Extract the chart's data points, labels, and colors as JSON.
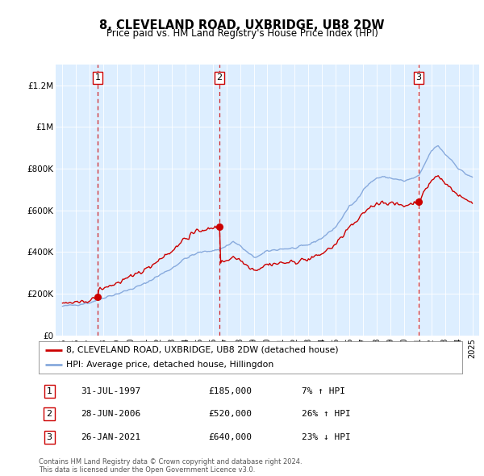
{
  "title": "8, CLEVELAND ROAD, UXBRIDGE, UB8 2DW",
  "subtitle": "Price paid vs. HM Land Registry's House Price Index (HPI)",
  "sale_dates": [
    1997.58,
    2006.49,
    2021.07
  ],
  "sale_prices": [
    185000,
    520000,
    640000
  ],
  "sale_labels": [
    "1",
    "2",
    "3"
  ],
  "sale_date_strs": [
    "31-JUL-1997",
    "28-JUN-2006",
    "26-JAN-2021"
  ],
  "sale_price_strs": [
    "£185,000",
    "£520,000",
    "£640,000"
  ],
  "sale_hpi_strs": [
    "7% ↑ HPI",
    "26% ↑ HPI",
    "23% ↓ HPI"
  ],
  "hpi_line_color": "#88aadd",
  "price_line_color": "#cc0000",
  "marker_color": "#cc0000",
  "dashed_line_color": "#cc0000",
  "plot_bg_color": "#ddeeff",
  "legend_line1": "8, CLEVELAND ROAD, UXBRIDGE, UB8 2DW (detached house)",
  "legend_line2": "HPI: Average price, detached house, Hillingdon",
  "footer": "Contains HM Land Registry data © Crown copyright and database right 2024.\nThis data is licensed under the Open Government Licence v3.0.",
  "ylim": [
    0,
    1300000
  ],
  "xlim_start": 1994.5,
  "xlim_end": 2025.5,
  "yticks": [
    0,
    200000,
    400000,
    600000,
    800000,
    1000000,
    1200000
  ],
  "ytick_labels": [
    "£0",
    "£200K",
    "£400K",
    "£600K",
    "£800K",
    "£1M",
    "£1.2M"
  ],
  "xticks": [
    1995,
    1996,
    1997,
    1998,
    1999,
    2000,
    2001,
    2002,
    2003,
    2004,
    2005,
    2006,
    2007,
    2008,
    2009,
    2010,
    2011,
    2012,
    2013,
    2014,
    2015,
    2016,
    2017,
    2018,
    2019,
    2020,
    2021,
    2022,
    2023,
    2024,
    2025
  ],
  "hpi_years": [
    1995.0,
    1995.08,
    1995.17,
    1995.25,
    1995.33,
    1995.42,
    1995.5,
    1995.58,
    1995.67,
    1995.75,
    1995.83,
    1995.92,
    1996.0,
    1996.08,
    1996.17,
    1996.25,
    1996.33,
    1996.42,
    1996.5,
    1996.58,
    1996.67,
    1996.75,
    1996.83,
    1996.92,
    1997.0,
    1997.08,
    1997.17,
    1997.25,
    1997.33,
    1997.42,
    1997.5,
    1997.58,
    1997.67,
    1997.75,
    1997.83,
    1997.92,
    1998.0,
    1998.08,
    1998.17,
    1998.25,
    1998.33,
    1998.42,
    1998.5,
    1998.58,
    1998.67,
    1998.75,
    1998.83,
    1998.92,
    1999.0,
    1999.08,
    1999.17,
    1999.25,
    1999.33,
    1999.42,
    1999.5,
    1999.58,
    1999.67,
    1999.75,
    1999.83,
    1999.92,
    2000.0,
    2000.08,
    2000.17,
    2000.25,
    2000.33,
    2000.42,
    2000.5,
    2000.58,
    2000.67,
    2000.75,
    2000.83,
    2000.92,
    2001.0,
    2001.08,
    2001.17,
    2001.25,
    2001.33,
    2001.42,
    2001.5,
    2001.58,
    2001.67,
    2001.75,
    2001.83,
    2001.92,
    2002.0,
    2002.08,
    2002.17,
    2002.25,
    2002.33,
    2002.42,
    2002.5,
    2002.58,
    2002.67,
    2002.75,
    2002.83,
    2002.92,
    2003.0,
    2003.08,
    2003.17,
    2003.25,
    2003.33,
    2003.42,
    2003.5,
    2003.58,
    2003.67,
    2003.75,
    2003.83,
    2003.92,
    2004.0,
    2004.08,
    2004.17,
    2004.25,
    2004.33,
    2004.42,
    2004.5,
    2004.58,
    2004.67,
    2004.75,
    2004.83,
    2004.92,
    2005.0,
    2005.08,
    2005.17,
    2005.25,
    2005.33,
    2005.42,
    2005.5,
    2005.58,
    2005.67,
    2005.75,
    2005.83,
    2005.92,
    2006.0,
    2006.08,
    2006.17,
    2006.25,
    2006.33,
    2006.42,
    2006.5,
    2006.58,
    2006.67,
    2006.75,
    2006.83,
    2006.92,
    2007.0,
    2007.08,
    2007.17,
    2007.25,
    2007.33,
    2007.42,
    2007.5,
    2007.58,
    2007.67,
    2007.75,
    2007.83,
    2007.92,
    2008.0,
    2008.08,
    2008.17,
    2008.25,
    2008.33,
    2008.42,
    2008.5,
    2008.58,
    2008.67,
    2008.75,
    2008.83,
    2008.92,
    2009.0,
    2009.08,
    2009.17,
    2009.25,
    2009.33,
    2009.42,
    2009.5,
    2009.58,
    2009.67,
    2009.75,
    2009.83,
    2009.92,
    2010.0,
    2010.08,
    2010.17,
    2010.25,
    2010.33,
    2010.42,
    2010.5,
    2010.58,
    2010.67,
    2010.75,
    2010.83,
    2010.92,
    2011.0,
    2011.08,
    2011.17,
    2011.25,
    2011.33,
    2011.42,
    2011.5,
    2011.58,
    2011.67,
    2011.75,
    2011.83,
    2011.92,
    2012.0,
    2012.08,
    2012.17,
    2012.25,
    2012.33,
    2012.42,
    2012.5,
    2012.58,
    2012.67,
    2012.75,
    2012.83,
    2012.92,
    2013.0,
    2013.08,
    2013.17,
    2013.25,
    2013.33,
    2013.42,
    2013.5,
    2013.58,
    2013.67,
    2013.75,
    2013.83,
    2013.92,
    2014.0,
    2014.08,
    2014.17,
    2014.25,
    2014.33,
    2014.42,
    2014.5,
    2014.58,
    2014.67,
    2014.75,
    2014.83,
    2014.92,
    2015.0,
    2015.08,
    2015.17,
    2015.25,
    2015.33,
    2015.42,
    2015.5,
    2015.58,
    2015.67,
    2015.75,
    2015.83,
    2015.92,
    2016.0,
    2016.08,
    2016.17,
    2016.25,
    2016.33,
    2016.42,
    2016.5,
    2016.58,
    2016.67,
    2016.75,
    2016.83,
    2016.92,
    2017.0,
    2017.08,
    2017.17,
    2017.25,
    2017.33,
    2017.42,
    2017.5,
    2017.58,
    2017.67,
    2017.75,
    2017.83,
    2017.92,
    2018.0,
    2018.08,
    2018.17,
    2018.25,
    2018.33,
    2018.42,
    2018.5,
    2018.58,
    2018.67,
    2018.75,
    2018.83,
    2018.92,
    2019.0,
    2019.08,
    2019.17,
    2019.25,
    2019.33,
    2019.42,
    2019.5,
    2019.58,
    2019.67,
    2019.75,
    2019.83,
    2019.92,
    2020.0,
    2020.08,
    2020.17,
    2020.25,
    2020.33,
    2020.42,
    2020.5,
    2020.58,
    2020.67,
    2020.75,
    2020.83,
    2020.92,
    2021.0,
    2021.08,
    2021.17,
    2021.25,
    2021.33,
    2021.42,
    2021.5,
    2021.58,
    2021.67,
    2021.75,
    2021.83,
    2021.92,
    2022.0,
    2022.08,
    2022.17,
    2022.25,
    2022.33,
    2022.42,
    2022.5,
    2022.58,
    2022.67,
    2022.75,
    2022.83,
    2022.92,
    2023.0,
    2023.08,
    2023.17,
    2023.25,
    2023.33,
    2023.42,
    2023.5,
    2023.58,
    2023.67,
    2023.75,
    2023.83,
    2023.92,
    2024.0,
    2024.08,
    2024.17,
    2024.25,
    2024.33,
    2024.42,
    2024.5,
    2024.58,
    2024.67,
    2024.75,
    2024.83,
    2024.92,
    2025.0
  ]
}
